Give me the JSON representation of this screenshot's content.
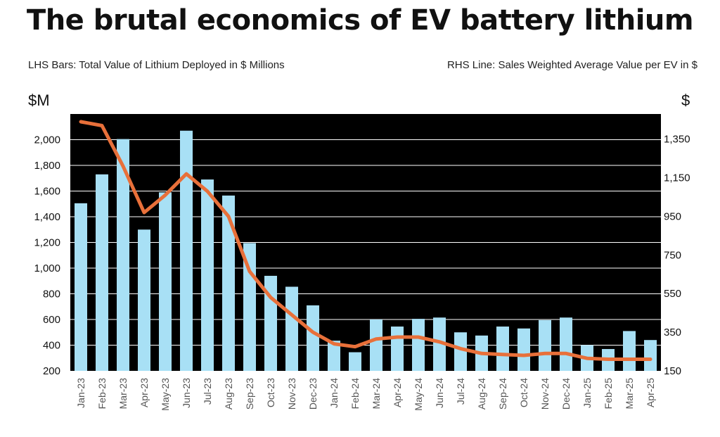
{
  "header": {
    "title": "The brutal economics of EV battery lithium",
    "left_note": "LHS Bars: Total Value of Lithium Deployed in $ Millions",
    "right_note": "RHS Line: Sales Weighted Average Value per EV in $",
    "left_unit": "$M",
    "right_unit": "$"
  },
  "colors": {
    "plot_bg": "#000000",
    "bar": "#a8e0f5",
    "line": "#e8703a",
    "grid": "#ffffff"
  },
  "chart_data": {
    "type": "bar",
    "title": "The brutal economics of EV battery lithium",
    "categories": [
      "Jan-23",
      "Feb-23",
      "Mar-23",
      "Apr-23",
      "May-23",
      "Jun-23",
      "Jul-23",
      "Aug-23",
      "Sep-23",
      "Oct-23",
      "Nov-23",
      "Dec-23",
      "Jan-24",
      "Feb-24",
      "Mar-24",
      "Apr-24",
      "May-24",
      "Jun-24",
      "Jul-24",
      "Aug-24",
      "Sep-24",
      "Oct-24",
      "Nov-24",
      "Dec-24",
      "Jan-25",
      "Feb-25",
      "Mar-25",
      "Apr-25"
    ],
    "series": [
      {
        "name": "Total Value of Lithium Deployed ($ Millions)",
        "type": "bar",
        "axis": "left",
        "values": [
          1505,
          1730,
          2005,
          1300,
          1590,
          2070,
          1690,
          1565,
          1195,
          940,
          855,
          710,
          435,
          345,
          600,
          545,
          605,
          615,
          500,
          475,
          545,
          530,
          595,
          615,
          400,
          370,
          510,
          440
        ]
      },
      {
        "name": "Sales Weighted Average Value per EV ($)",
        "type": "line",
        "axis": "right",
        "values": [
          1440,
          1420,
          1210,
          970,
          1060,
          1170,
          1080,
          950,
          665,
          530,
          440,
          350,
          290,
          275,
          315,
          325,
          325,
          300,
          265,
          240,
          235,
          230,
          240,
          240,
          215,
          210,
          210,
          210
        ]
      }
    ],
    "left_axis": {
      "ylim": [
        200,
        2200
      ],
      "ticks": [
        200,
        400,
        600,
        800,
        1000,
        1200,
        1400,
        1600,
        1800,
        2000
      ],
      "tick_labels": [
        "200",
        "400",
        "600",
        "800",
        "1,000",
        "1,200",
        "1,400",
        "1,600",
        "1,800",
        "2,000"
      ]
    },
    "right_axis": {
      "ylim": [
        150,
        1480
      ],
      "ticks": [
        150,
        350,
        550,
        750,
        950,
        1150,
        1350
      ],
      "tick_labels": [
        "150",
        "350",
        "550",
        "750",
        "950",
        "1,150",
        "1,350"
      ]
    },
    "grid": true
  }
}
